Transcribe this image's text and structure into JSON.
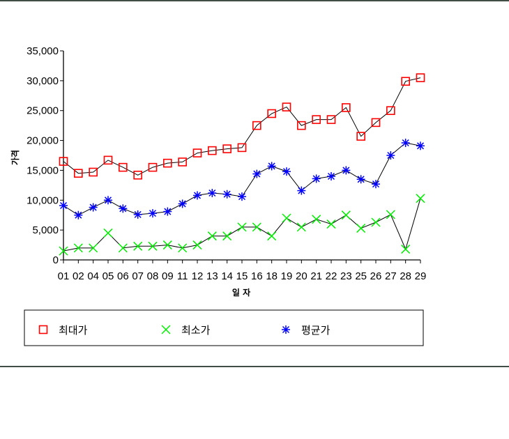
{
  "chart_data": {
    "type": "line",
    "title": "",
    "xlabel": "일 자",
    "ylabel": "가격",
    "categories": [
      "01",
      "02",
      "04",
      "05",
      "06",
      "07",
      "08",
      "09",
      "11",
      "12",
      "13",
      "14",
      "15",
      "16",
      "18",
      "19",
      "20",
      "21",
      "22",
      "23",
      "25",
      "26",
      "27",
      "28",
      "29"
    ],
    "ylim": [
      0,
      35000
    ],
    "yticks": [
      0,
      5000,
      10000,
      15000,
      20000,
      25000,
      30000,
      35000
    ],
    "ytick_labels": [
      "0",
      "5,000",
      "10,000",
      "15,000",
      "20,000",
      "25,000",
      "30,000",
      "35,000"
    ],
    "grid": false,
    "legend_position": "bottom",
    "series": [
      {
        "name": "최대가",
        "marker": "square",
        "color": "#ff0000",
        "values": [
          16500,
          14500,
          14700,
          16700,
          15500,
          14200,
          15500,
          16200,
          16400,
          17900,
          18300,
          18600,
          18800,
          22500,
          24500,
          25600,
          22500,
          23500,
          23500,
          25500,
          20700,
          23000,
          25000,
          29900,
          30500
        ]
      },
      {
        "name": "최소가",
        "marker": "x",
        "color": "#00ee00",
        "values": [
          1500,
          2000,
          2000,
          4500,
          2000,
          2300,
          2300,
          2500,
          2000,
          2500,
          4000,
          4000,
          5500,
          5500,
          4000,
          7000,
          5500,
          6800,
          6000,
          7500,
          5300,
          6300,
          7600,
          1800,
          10300
        ]
      },
      {
        "name": "평균가",
        "marker": "asterisk",
        "color": "#0000ff",
        "values": [
          9100,
          7500,
          8800,
          10000,
          8600,
          7600,
          7800,
          8100,
          9400,
          10800,
          11200,
          11000,
          10600,
          14400,
          15700,
          14800,
          11600,
          13600,
          14000,
          15000,
          13500,
          12700,
          17500,
          19600,
          19100
        ]
      }
    ]
  }
}
